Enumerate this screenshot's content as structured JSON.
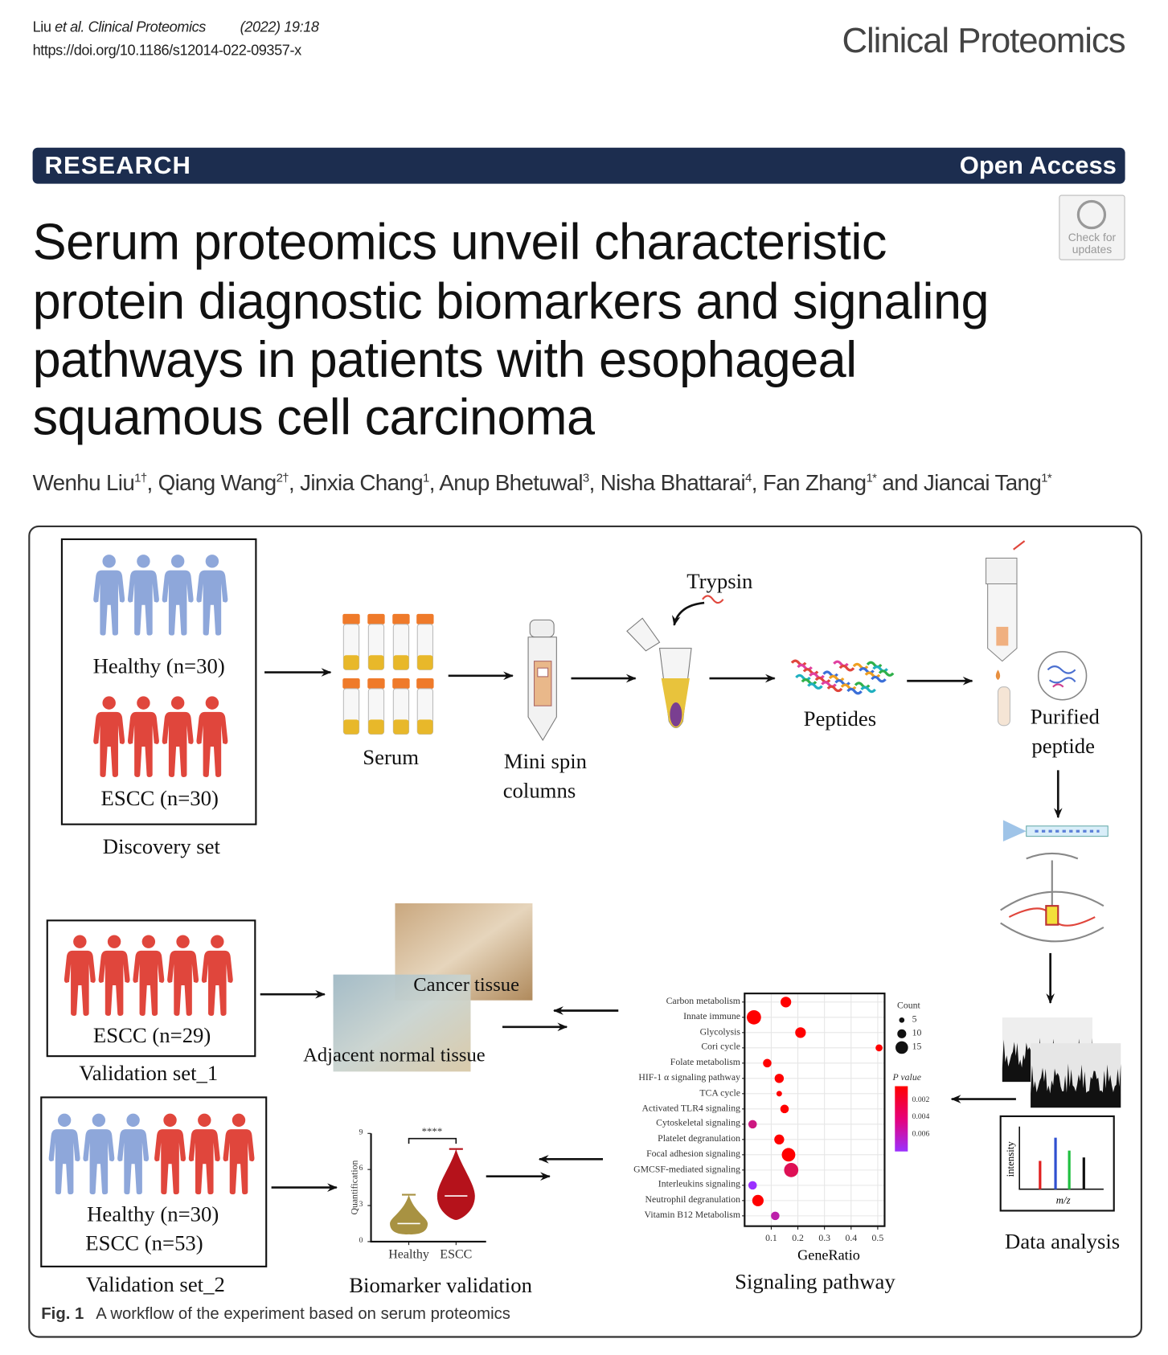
{
  "header": {
    "citation_authors": "Liu ",
    "citation_etal": "et al. Clinical Proteomics",
    "citation_year": "(2022) 19:18",
    "doi": "https://doi.org/10.1186/s12014-022-09357-x",
    "journal_name": "Clinical Proteomics"
  },
  "banner": {
    "type": "RESEARCH",
    "access": "Open Access"
  },
  "check_updates": {
    "line1": "Check for",
    "line2": "updates"
  },
  "article": {
    "title_lines": [
      "Serum proteomics unveil characteristic",
      "protein diagnostic biomarkers and signaling",
      "pathways in patients with esophageal",
      "squamous cell carcinoma"
    ],
    "authors": [
      {
        "name": "Wenhu Liu",
        "sup": "1†"
      },
      {
        "name": "Qiang Wang",
        "sup": "2†"
      },
      {
        "name": "Jinxia Chang",
        "sup": "1"
      },
      {
        "name": "Anup Bhetuwal",
        "sup": "3"
      },
      {
        "name": "Nisha Bhattarai",
        "sup": "4"
      },
      {
        "name": "Fan Zhang",
        "sup": "1*"
      },
      {
        "name": "Jiancai Tang",
        "sup": "1*"
      }
    ],
    "authors_sep": ", ",
    "authors_and": " and "
  },
  "figure": {
    "discovery": {
      "healthy": "Healthy (n=30)",
      "escc": "ESCC (n=30)",
      "label": "Discovery set"
    },
    "serum": "Serum",
    "spin_line1": "Mini spin",
    "spin_line2": "columns",
    "trypsin": "Trypsin",
    "peptides": "Peptides",
    "purified_line1": "Purified",
    "purified_line2": "peptide",
    "data_analysis": "Data analysis",
    "spectrum_ylabel": "intensity",
    "spectrum_xlabel": "m/z",
    "validation1": {
      "escc": "ESCC (n=29)",
      "label": "Validation set_1"
    },
    "tissue": {
      "cancer": "Cancer tissue",
      "normal": "Adjacent normal tissue"
    },
    "validation2": {
      "healthy": "Healthy (n=30)",
      "escc": "ESCC (n=53)",
      "label": "Validation set_2"
    },
    "biomarker_label": "Biomarker validation",
    "signaling_label": "Signaling pathway",
    "caption_label": "Fig. 1",
    "caption_text": "A workflow of the experiment based on serum proteomics"
  },
  "colors": {
    "healthy": "#8ea7da",
    "escc": "#e0463c",
    "banner": "#1c2d4f",
    "healthy_violin": "#a89242",
    "escc_violin": "#b5121b"
  },
  "chart_data": [
    {
      "type": "scatter",
      "subtype": "bubble",
      "xlabel": "GeneRatio",
      "xlim": [
        0,
        0.52
      ],
      "xticks": [
        "0.1",
        "0.2",
        "0.3",
        "0.4",
        "0.5"
      ],
      "grid": true,
      "legend_placement": "right",
      "size_legend": {
        "title": "Count",
        "values": [
          5,
          10,
          15
        ]
      },
      "color_legend": {
        "title": "P value",
        "ticks": [
          "0.002",
          "0.004",
          "0.006"
        ],
        "range": [
          0.001,
          0.007
        ],
        "low_color": "#ff0000",
        "high_color": "#9b30ff"
      },
      "points": [
        {
          "pathway": "Carbon metabolism",
          "gene_ratio": 0.155,
          "count": 10,
          "p": 0.001
        },
        {
          "pathway": "Innate immune",
          "gene_ratio": 0.035,
          "count": 15,
          "p": 0.001
        },
        {
          "pathway": "Glycolysis",
          "gene_ratio": 0.21,
          "count": 10,
          "p": 0.001
        },
        {
          "pathway": "Cori cycle",
          "gene_ratio": 0.505,
          "count": 5,
          "p": 0.001
        },
        {
          "pathway": "Folate metabolism",
          "gene_ratio": 0.085,
          "count": 7,
          "p": 0.001
        },
        {
          "pathway": "HIF-1 α signaling pathway",
          "gene_ratio": 0.13,
          "count": 8,
          "p": 0.001
        },
        {
          "pathway": "TCA cycle",
          "gene_ratio": 0.13,
          "count": 3,
          "p": 0.001
        },
        {
          "pathway": "Activated TLR4 signaling",
          "gene_ratio": 0.15,
          "count": 7,
          "p": 0.001
        },
        {
          "pathway": "Cytoskeletal signaling",
          "gene_ratio": 0.03,
          "count": 7,
          "p": 0.004
        },
        {
          "pathway": "Platelet degranulation",
          "gene_ratio": 0.13,
          "count": 9,
          "p": 0.001
        },
        {
          "pathway": "Focal adhesion signaling",
          "gene_ratio": 0.165,
          "count": 14,
          "p": 0.001
        },
        {
          "pathway": "GMCSF-mediated signaling",
          "gene_ratio": 0.175,
          "count": 15,
          "p": 0.003
        },
        {
          "pathway": "Interleukins signaling",
          "gene_ratio": 0.03,
          "count": 7,
          "p": 0.007
        },
        {
          "pathway": "Neutrophil degranulation",
          "gene_ratio": 0.05,
          "count": 11,
          "p": 0.001
        },
        {
          "pathway": "Vitamin B12 Metabolism",
          "gene_ratio": 0.115,
          "count": 7,
          "p": 0.005
        }
      ]
    },
    {
      "type": "violin",
      "ylabel": "Quantification",
      "ylim": [
        0,
        9
      ],
      "yticks": [
        "0",
        "3",
        "6",
        "9"
      ],
      "categories": [
        "Healthy",
        "ESCC"
      ],
      "annotation": "****",
      "groups": [
        {
          "name": "Healthy",
          "min": 0.6,
          "q1": 1.1,
          "median": 1.5,
          "q3": 2.0,
          "max": 3.9
        },
        {
          "name": "ESCC",
          "min": 1.8,
          "q1": 3.0,
          "median": 3.8,
          "q3": 4.8,
          "max": 7.7
        }
      ]
    }
  ]
}
